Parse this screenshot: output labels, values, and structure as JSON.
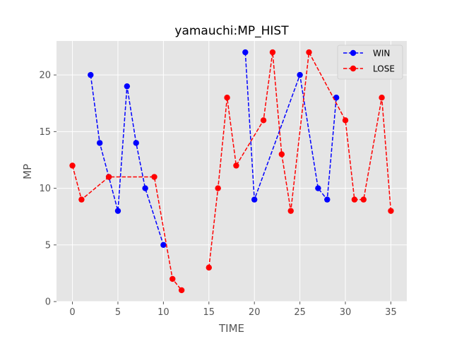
{
  "chart_data": {
    "type": "line",
    "title": "yamauchi:MP_HIST",
    "xlabel": "TIME",
    "ylabel": "MP",
    "xlim": [
      -1.75,
      36.75
    ],
    "ylim": [
      0,
      23
    ],
    "xticks": [
      0,
      5,
      10,
      15,
      20,
      25,
      30,
      35
    ],
    "yticks": [
      0,
      5,
      10,
      15,
      20
    ],
    "grid": true,
    "legend_position": "top-right",
    "series": [
      {
        "name": "WIN",
        "color": "#0000ff",
        "line_style": "dashed",
        "marker": "circle",
        "segments": [
          [
            [
              2,
              20
            ],
            [
              3,
              14
            ],
            [
              4,
              11
            ],
            [
              5,
              8
            ],
            [
              6,
              19
            ],
            [
              7,
              14
            ],
            [
              8,
              10
            ],
            [
              10,
              5
            ]
          ],
          [
            [
              19,
              22
            ],
            [
              20,
              9
            ],
            [
              25,
              20
            ],
            [
              27,
              10
            ],
            [
              28,
              9
            ],
            [
              29,
              18
            ]
          ]
        ]
      },
      {
        "name": "LOSE",
        "color": "#ff0000",
        "line_style": "dashed",
        "marker": "circle",
        "segments": [
          [
            [
              0,
              12
            ],
            [
              1,
              9
            ],
            [
              4,
              11
            ],
            [
              9,
              11
            ],
            [
              11,
              2
            ],
            [
              12,
              1
            ]
          ],
          [
            [
              15,
              3
            ],
            [
              16,
              10
            ],
            [
              17,
              18
            ],
            [
              18,
              12
            ],
            [
              21,
              16
            ],
            [
              22,
              22
            ],
            [
              23,
              13
            ],
            [
              24,
              8
            ],
            [
              26,
              22
            ],
            [
              30,
              16
            ],
            [
              31,
              9
            ],
            [
              32,
              9
            ],
            [
              34,
              18
            ],
            [
              35,
              8
            ]
          ]
        ]
      }
    ]
  }
}
